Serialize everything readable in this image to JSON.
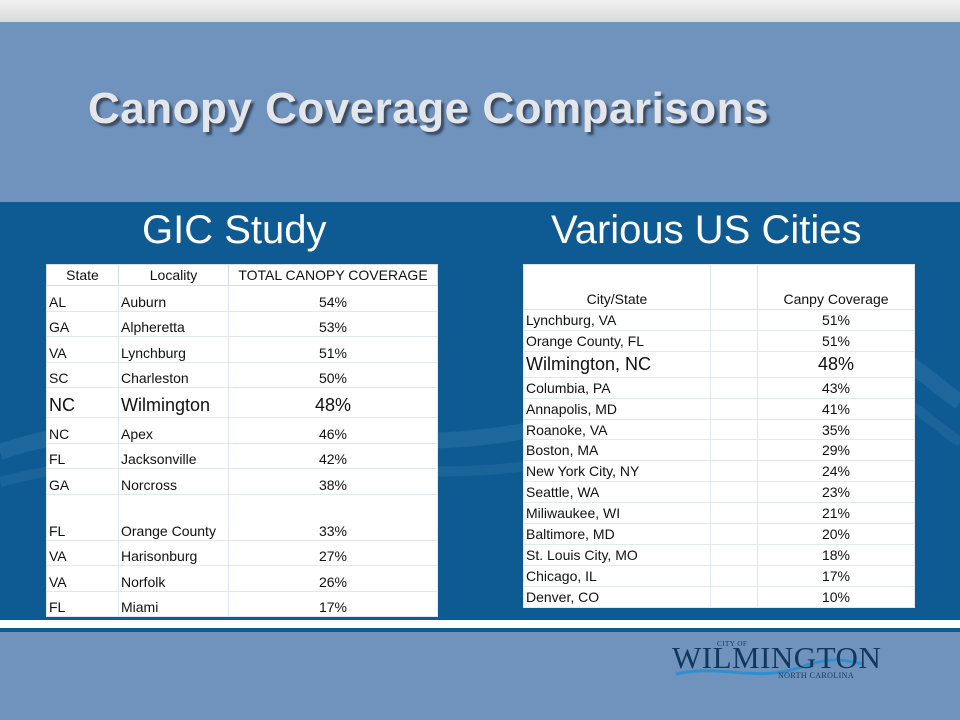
{
  "slide": {
    "title": "Canopy Coverage Comparisons",
    "colors": {
      "title_band": "#6f93bd",
      "panel": "#0e5b93",
      "title_text": "#e4e6ea"
    }
  },
  "gic": {
    "heading": "GIC Study",
    "columns": [
      "State",
      "Locality",
      "TOTAL CANOPY COVERAGE"
    ],
    "rows": [
      {
        "state": "AL",
        "locality": "Auburn",
        "coverage": "54%"
      },
      {
        "state": "GA",
        "locality": "Alpheretta",
        "coverage": "53%"
      },
      {
        "state": "VA",
        "locality": "Lynchburg",
        "coverage": "51%"
      },
      {
        "state": "SC",
        "locality": "Charleston",
        "coverage": "50%"
      },
      {
        "state": "NC",
        "locality": "Wilmington",
        "coverage": "48%"
      },
      {
        "state": "NC",
        "locality": "Apex",
        "coverage": "46%"
      },
      {
        "state": "FL",
        "locality": "Jacksonville",
        "coverage": "42%"
      },
      {
        "state": "GA",
        "locality": "Norcross",
        "coverage": "38%"
      },
      {
        "state": "FL",
        "locality": "Orange County",
        "coverage": "33%"
      },
      {
        "state": "VA",
        "locality": "Harisonburg",
        "coverage": "27%"
      },
      {
        "state": "VA",
        "locality": "Norfolk",
        "coverage": "26%"
      },
      {
        "state": "FL",
        "locality": "Miami",
        "coverage": "17%"
      }
    ]
  },
  "cities": {
    "heading": "Various US Cities",
    "columns": [
      "City/State",
      "",
      "Canpy Coverage"
    ],
    "rows": [
      {
        "city": "Lynchburg, VA",
        "coverage": "51%"
      },
      {
        "city": "Orange County, FL",
        "coverage": "51%"
      },
      {
        "city": "Wilmington, NC",
        "coverage": "48%"
      },
      {
        "city": "Columbia, PA",
        "coverage": "43%"
      },
      {
        "city": "Annapolis, MD",
        "coverage": "41%"
      },
      {
        "city": "Roanoke, VA",
        "coverage": "35%"
      },
      {
        "city": "Boston, MA",
        "coverage": "29%"
      },
      {
        "city": "New York City, NY",
        "coverage": "24%"
      },
      {
        "city": "Seattle, WA",
        "coverage": "23%"
      },
      {
        "city": "Miliwaukee, WI",
        "coverage": "21%"
      },
      {
        "city": "Baltimore, MD",
        "coverage": "20%"
      },
      {
        "city": "St. Louis City, MO",
        "coverage": "18%"
      },
      {
        "city": "Chicago, IL",
        "coverage": "17%"
      },
      {
        "city": "Denver, CO",
        "coverage": "10%"
      }
    ]
  },
  "logo": {
    "city_of": "CITY OF",
    "name": "WILMINGTON",
    "subtitle": "NORTH CAROLINA"
  }
}
